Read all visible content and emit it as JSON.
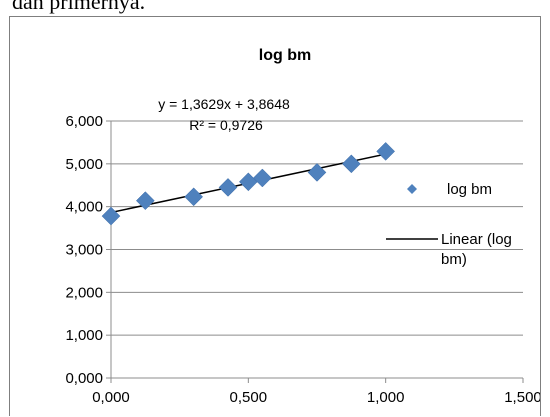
{
  "page": {
    "top_text": "dan primernya."
  },
  "chart_data": {
    "type": "scatter",
    "title": "log bm",
    "xlabel": "",
    "ylabel": "",
    "xlim": [
      0,
      1.5
    ],
    "ylim": [
      0,
      6
    ],
    "x_ticks": [
      0,
      0.5,
      1,
      1.5
    ],
    "y_ticks": [
      0,
      1,
      2,
      3,
      4,
      5,
      6
    ],
    "x_tick_labels": [
      "0,000",
      "0,500",
      "1,000",
      "1,500"
    ],
    "y_tick_labels": [
      "0,000",
      "1,000",
      "2,000",
      "3,000",
      "4,000",
      "5,000",
      "6,000"
    ],
    "grid": "horizontal",
    "legend_position": "right",
    "series": [
      {
        "name": "log bm",
        "color": "#4f81bd",
        "marker": "diamond",
        "points": [
          {
            "x": 0.0,
            "y": 3.78
          },
          {
            "x": 0.125,
            "y": 4.14
          },
          {
            "x": 0.301,
            "y": 4.23
          },
          {
            "x": 0.426,
            "y": 4.45
          },
          {
            "x": 0.5,
            "y": 4.58
          },
          {
            "x": 0.551,
            "y": 4.67
          },
          {
            "x": 0.75,
            "y": 4.8
          },
          {
            "x": 0.875,
            "y": 5.0
          },
          {
            "x": 1.0,
            "y": 5.29
          }
        ]
      }
    ],
    "trendline": {
      "name": "Linear (log bm)",
      "legend_lines": [
        "Linear (log",
        "bm)"
      ],
      "type": "linear",
      "slope": 1.3629,
      "intercept": 3.8648,
      "x_range": [
        0,
        1
      ],
      "color": "#000000",
      "equation_label": "y = 1,3629x + 3,8648",
      "r2_label": "R² = 0,9726"
    }
  }
}
